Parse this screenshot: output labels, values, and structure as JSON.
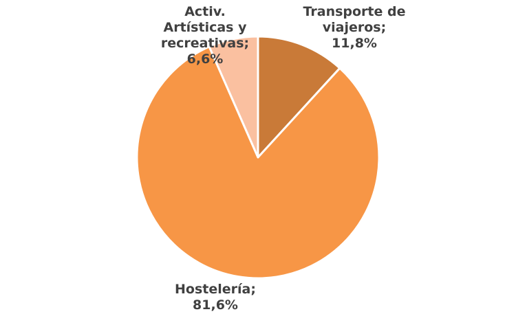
{
  "chart_data": {
    "type": "pie",
    "title": "",
    "slices": [
      {
        "label_lines": [
          "Transporte de",
          "viajeros;",
          "11,8%"
        ],
        "category": "Transporte de viajeros",
        "value": 11.8,
        "color": "#C97A38"
      },
      {
        "label_lines": [
          "Hostelería;",
          "81,6%"
        ],
        "category": "Hostelería",
        "value": 81.6,
        "color": "#F79646"
      },
      {
        "label_lines": [
          "Activ.",
          "Artísticas y",
          "recreativas;",
          "6,6%"
        ],
        "category": "Activ. Artísticas y recreativas",
        "value": 6.6,
        "color": "#FAC0A0"
      }
    ],
    "start_angle": "12 o'clock",
    "direction": "clockwise",
    "legend": "none",
    "data_labels": "outside end"
  }
}
